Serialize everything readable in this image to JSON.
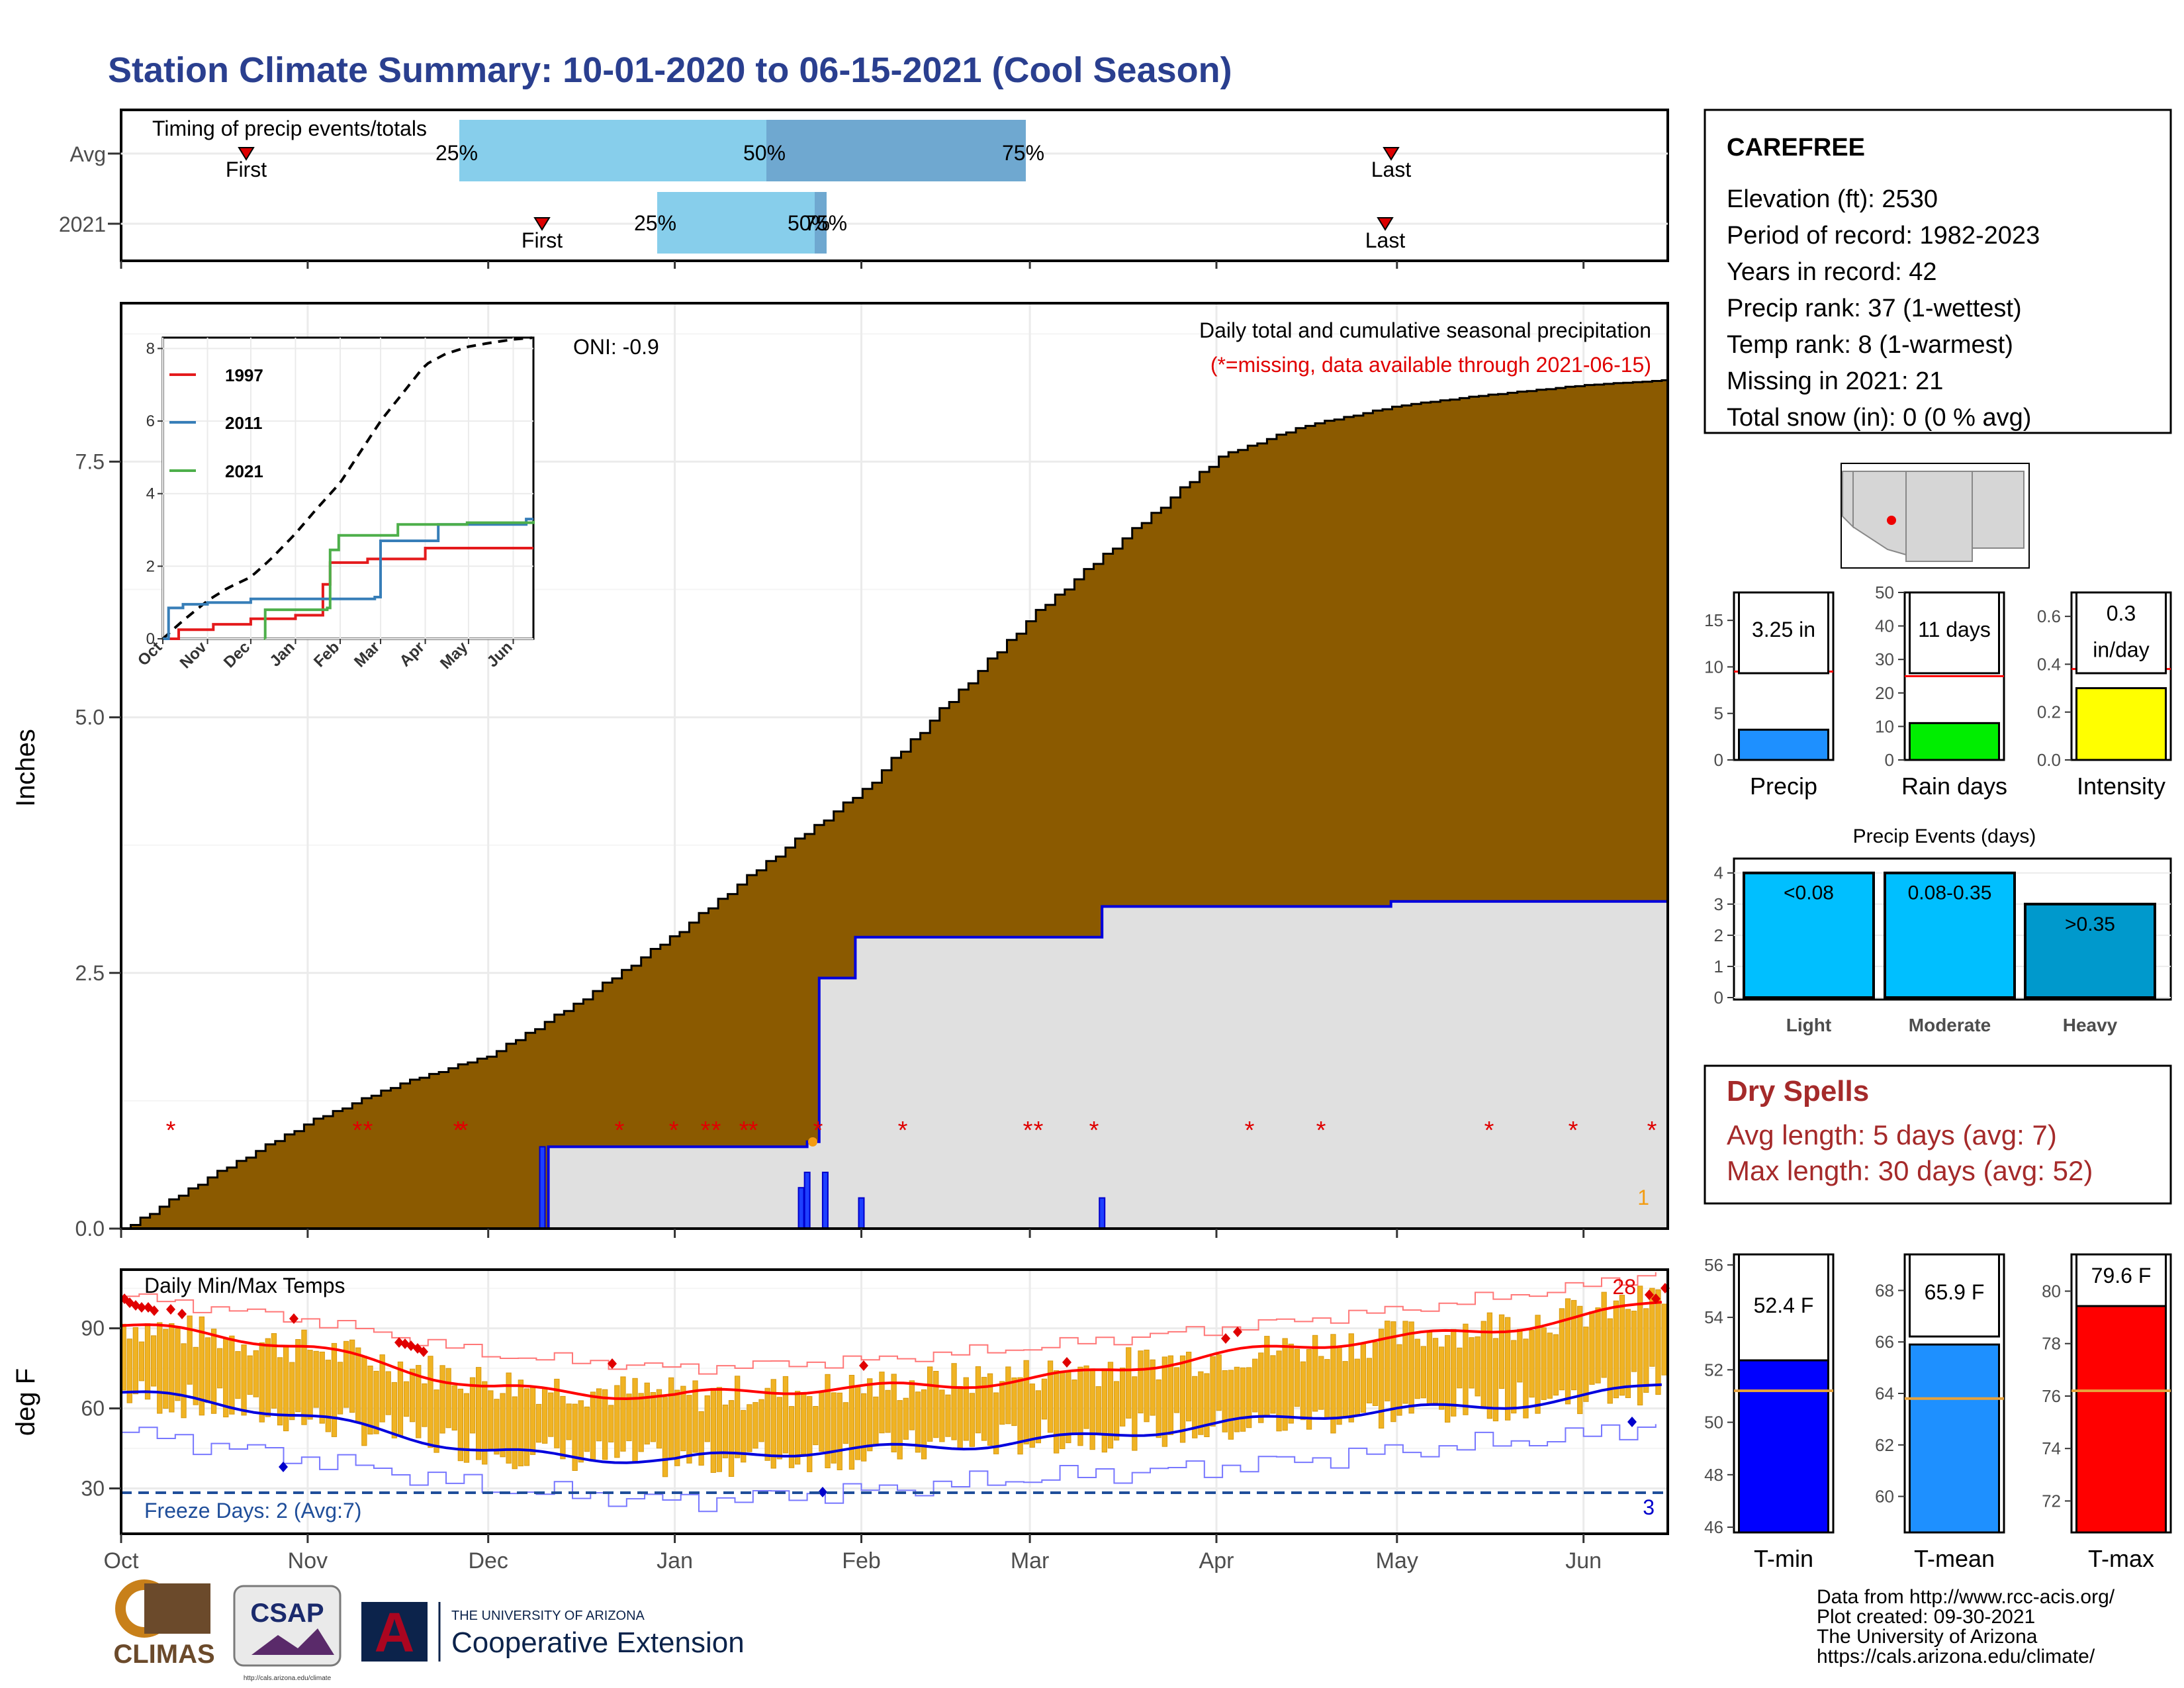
{
  "title": "Station Climate Summary: 10-01-2020 to 06-15-2021 (Cool Season)",
  "timing": {
    "title": "Timing of precip events/totals",
    "rows": [
      "Avg",
      "2021"
    ],
    "avg": {
      "first": "First",
      "p25": "25%",
      "p50": "50%",
      "p75": "75%",
      "last": "Last"
    },
    "y2021": {
      "first": "First",
      "p25": "25%",
      "p50": "50%",
      "p75": "75%",
      "last": "Last"
    }
  },
  "station": {
    "name": "CAREFREE",
    "lines": [
      "Elevation (ft): 2530",
      "Period of record: 1982-2023",
      "Years in record: 42",
      "Precip rank: 37 (1-wettest)",
      "Temp rank: 8 (1-warmest)",
      "Missing in 2021: 21",
      "Total snow (in): 0 (0 % avg)"
    ]
  },
  "precip": {
    "ylabel": "Inches",
    "oni": "ONI: -0.9",
    "subtitle": "Daily total and cumulative seasonal precipitation",
    "missing_note": "(*=missing, data available through 2021-06-15)",
    "corner_value": "1",
    "yticks": [
      "0.0",
      "2.5",
      "5.0",
      "7.5"
    ],
    "months": [
      "Oct",
      "Nov",
      "Dec",
      "Jan",
      "Feb",
      "Mar",
      "Apr",
      "May",
      "Jun"
    ]
  },
  "inset": {
    "legend": [
      "1997",
      "2011",
      "2021"
    ],
    "yticks": [
      "0",
      "2",
      "4",
      "6",
      "8"
    ],
    "months": [
      "Oct",
      "Nov",
      "Dec",
      "Jan",
      "Feb",
      "Mar",
      "Apr",
      "May",
      "Jun"
    ],
    "colors": {
      "1997": "#e41a1c",
      "2011": "#377eb8",
      "2021": "#4daf4a"
    }
  },
  "temps": {
    "title": "Daily Min/Max Temps",
    "ylabel": "deg F",
    "yticks": [
      "30",
      "60",
      "90"
    ],
    "freeze": "Freeze Days: 2 (Avg:7)",
    "max_count": "28",
    "min_count": "3"
  },
  "bars_precip": {
    "precip": {
      "label": "Precip",
      "value_label": "3.25 in",
      "value": 3.25,
      "avg": 9.5,
      "ymax": 18,
      "ticks": [
        "0",
        "5",
        "10",
        "15"
      ],
      "color": "#1e90ff"
    },
    "raindays": {
      "label": "Rain days",
      "value_label": "11 days",
      "value": 11,
      "avg": 25,
      "ymax": 50,
      "ticks": [
        "0",
        "10",
        "20",
        "30",
        "40",
        "50"
      ],
      "color": "#00ee00"
    },
    "intensity": {
      "label": "Intensity",
      "value_label1": "0.3",
      "value_label2": "in/day",
      "value": 0.3,
      "avg": 0.38,
      "ymax": 0.7,
      "ticks": [
        "0.0",
        "0.2",
        "0.4",
        "0.6"
      ],
      "color": "#ffff00"
    }
  },
  "events": {
    "title": "Precip Events (days)",
    "categories": [
      "Light",
      "Moderate",
      "Heavy"
    ],
    "bins": [
      "<0.08",
      "0.08-0.35",
      ">0.35"
    ],
    "values": [
      4,
      4,
      3
    ],
    "yticks": [
      "0",
      "1",
      "2",
      "3",
      "4"
    ]
  },
  "dry": {
    "title": "Dry Spells",
    "avg": "Avg length: 5 days (avg: 7)",
    "max": "Max length: 30 days (avg: 52)"
  },
  "bars_temp": {
    "tmin": {
      "label": "T-min",
      "value_label": "52.4 F",
      "value": 52.4,
      "avg": 51.2,
      "ymin": 45.8,
      "ymax": 56.4,
      "ticks": [
        "46",
        "48",
        "50",
        "52",
        "54",
        "56"
      ],
      "color": "#0000ff"
    },
    "tmean": {
      "label": "T-mean",
      "value_label": "65.9 F",
      "value": 65.9,
      "avg": 63.8,
      "ymin": 58.6,
      "ymax": 69.4,
      "ticks": [
        "60",
        "62",
        "64",
        "66",
        "68"
      ],
      "color": "#1e90ff"
    },
    "tmax": {
      "label": "T-max",
      "value_label": "79.6 F",
      "value": 79.6,
      "avg": 76.2,
      "ymin": 70.8,
      "ymax": 81.4,
      "ticks": [
        "72",
        "74",
        "76",
        "78",
        "80"
      ],
      "color": "#ff0000"
    }
  },
  "footer": {
    "credits": [
      "Data from http://www.rcc-acis.org/",
      "Plot created: 09-30-2021",
      "The University of Arizona",
      "https://cals.arizona.edu/climate/"
    ],
    "logo_climas": "CLIMAS",
    "logo_csap": "CSAP",
    "logo_csap_url": "http://cals.arizona.edu/climate",
    "ua_small": "THE UNIVERSITY OF ARIZONA",
    "ua_big": "Cooperative Extension",
    "ua_letter": "A"
  },
  "chart_data": [
    {
      "type": "area",
      "title": "Daily total and cumulative seasonal precipitation",
      "ylabel": "Inches",
      "ylim": [
        0,
        9
      ],
      "x_range": [
        "2020-10-01",
        "2021-06-15"
      ],
      "series": [
        {
          "name": "Avg",
          "x": [
            "2020-10-01",
            "2020-10-15",
            "2020-11-01",
            "2020-11-15",
            "2020-12-01",
            "2020-12-15",
            "2021-01-01",
            "2021-01-15",
            "2021-02-01",
            "2021-02-15",
            "2021-03-01",
            "2021-03-15",
            "2021-04-01",
            "2021-04-15",
            "2021-05-01",
            "2021-05-15",
            "2021-06-01",
            "2021-06-15"
          ],
          "y": [
            0.0,
            0.5,
            1.05,
            1.4,
            1.7,
            2.2,
            2.9,
            3.55,
            4.3,
            5.15,
            6.0,
            6.7,
            7.55,
            7.85,
            8.05,
            8.15,
            8.25,
            8.3
          ]
        },
        {
          "name": "2021",
          "x": [
            "2020-10-01",
            "2020-12-10",
            "2020-12-11",
            "2021-01-23",
            "2021-01-25",
            "2021-01-31",
            "2021-03-13",
            "2021-04-30",
            "2021-06-15"
          ],
          "y": [
            0.0,
            0.0,
            0.8,
            0.85,
            2.45,
            2.85,
            3.15,
            3.2,
            3.25
          ]
        }
      ],
      "daily_precip": [
        {
          "date": "2020-12-10",
          "value": 0.8
        },
        {
          "date": "2021-01-22",
          "value": 0.4
        },
        {
          "date": "2021-01-23",
          "value": 0.55
        },
        {
          "date": "2021-01-26",
          "value": 0.55
        },
        {
          "date": "2021-02-01",
          "value": 0.3
        },
        {
          "date": "2021-03-13",
          "value": 0.3
        }
      ]
    },
    {
      "type": "line",
      "title": "Daily Min/Max Temps",
      "ylabel": "deg F",
      "ylim": [
        13,
        112
      ],
      "x_range": [
        "2020-10-01",
        "2021-06-15"
      ],
      "series": [
        {
          "name": "Avg max",
          "x": [
            "2020-10-01",
            "2020-11-01",
            "2020-12-01",
            "2021-01-01",
            "2021-02-01",
            "2021-03-01",
            "2021-04-01",
            "2021-05-01",
            "2021-06-01",
            "2021-06-15"
          ],
          "y": [
            91,
            82,
            69,
            64,
            67,
            72,
            79,
            86,
            95,
            101
          ]
        },
        {
          "name": "Avg min",
          "x": [
            "2020-10-01",
            "2020-11-01",
            "2020-12-01",
            "2021-01-01",
            "2021-02-01",
            "2021-03-01",
            "2021-04-01",
            "2021-05-01",
            "2021-06-01",
            "2021-06-15"
          ],
          "y": [
            66,
            56,
            45,
            40,
            44,
            49,
            53,
            59,
            65,
            70
          ]
        }
      ]
    }
  ]
}
